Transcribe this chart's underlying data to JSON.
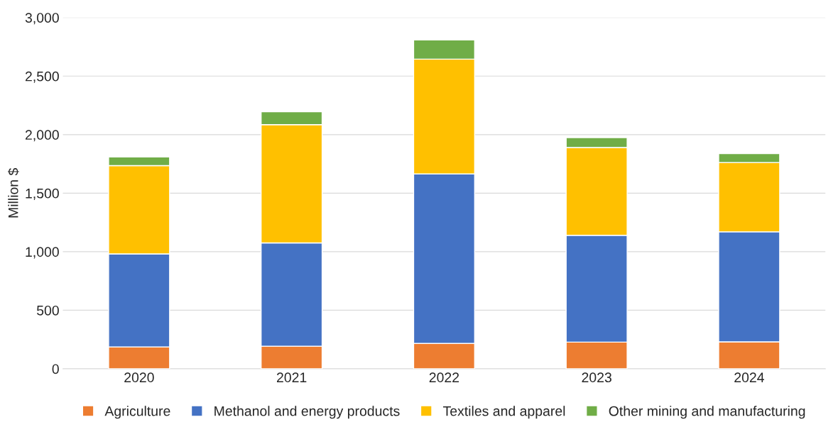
{
  "chart_data": {
    "type": "bar",
    "stacked": true,
    "ylabel": "Million $",
    "categories": [
      "2020",
      "2021",
      "2022",
      "2023",
      "2024"
    ],
    "series": [
      {
        "name": "Agriculture",
        "color": "#ed7d31",
        "values": [
          187,
          193,
          216,
          228,
          230
        ]
      },
      {
        "name": "Methanol and energy products",
        "color": "#4472c4",
        "values": [
          794,
          882,
          1448,
          912,
          940
        ]
      },
      {
        "name": "Textiles and apparel",
        "color": "#ffc000",
        "values": [
          754,
          1010,
          981,
          750,
          592
        ]
      },
      {
        "name": "Other mining and manufacturing",
        "color": "#70ad47",
        "values": [
          75,
          111,
          164,
          85,
          76
        ]
      }
    ],
    "ylim": [
      0,
      3000
    ],
    "yticks": [
      {
        "value": 0,
        "label": "0"
      },
      {
        "value": 500,
        "label": "500"
      },
      {
        "value": 1000,
        "label": "1,000"
      },
      {
        "value": 1500,
        "label": "1,500"
      },
      {
        "value": 2000,
        "label": "2,000"
      },
      {
        "value": 2500,
        "label": "2,500"
      },
      {
        "value": 3000,
        "label": "3,000"
      }
    ],
    "grid": "y",
    "legend": "bottom"
  }
}
